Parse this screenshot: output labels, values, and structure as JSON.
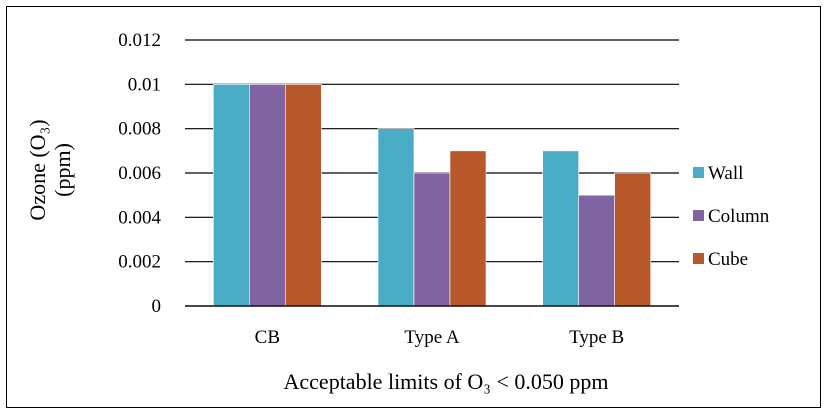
{
  "chart_data": {
    "type": "bar",
    "categories": [
      "CB",
      "Type A",
      "Type B"
    ],
    "series": [
      {
        "name": "Wall",
        "values": [
          0.01,
          0.008,
          0.007
        ],
        "color": "#4bacc6"
      },
      {
        "name": "Column",
        "values": [
          0.01,
          0.006,
          0.005
        ],
        "color": "#8064a2"
      },
      {
        "name": "Cube",
        "values": [
          0.01,
          0.007,
          0.006
        ],
        "color": "#b7572a"
      }
    ],
    "yticks": [
      "0",
      "0.002",
      "0.004",
      "0.006",
      "0.008",
      "0.01",
      "0.012"
    ],
    "ylim": [
      0,
      0.012
    ],
    "ylabel_line1": "Ozone (O₃)",
    "ylabel_line2": "(ppm)",
    "xlabel": "Acceptable limits of O₃ < 0.050 ppm",
    "grid": true,
    "legend_position": "right"
  }
}
